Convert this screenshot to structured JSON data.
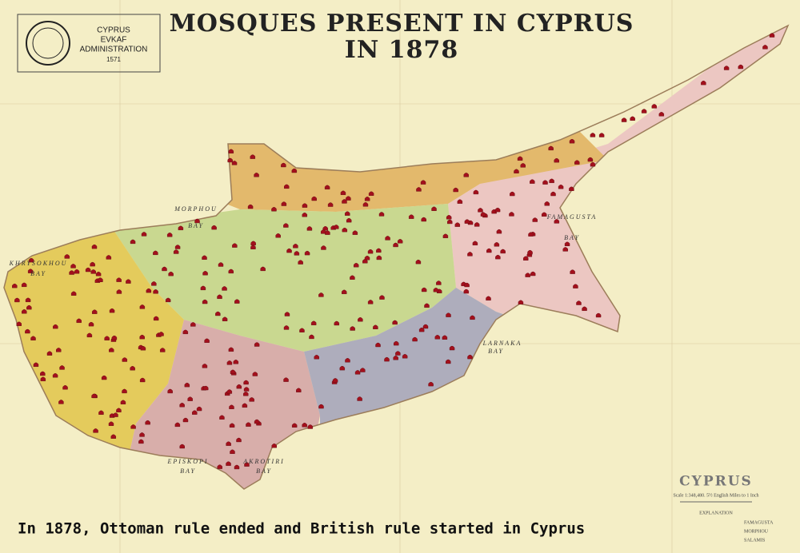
{
  "header": {
    "logo": [
      "CYPRUS",
      "EVKAF",
      "ADMINISTRATION",
      "1571"
    ],
    "title": [
      "MOSQUES PRESENT IN CYPRUS",
      "IN 1878"
    ]
  },
  "caption": "In 1878, Ottoman rule ended and British rule started in Cyprus",
  "map_labels": [
    "MORPHOU",
    "BAY",
    "KHRYSOKHOU",
    "BAY",
    "FAMAGUSTA",
    "BAY",
    "LARNAKA",
    "BAY",
    "EPISKOPI",
    "BAY",
    "AKROTIRI",
    "BAY"
  ],
  "legend": {
    "title": "CYPRUS",
    "scale": "Scale 1:348,480. 5½ English Miles to 1 Inch",
    "heading": "EXPLANATION",
    "entries": [
      "FAMAGUSTA",
      "MORPHOU",
      "SALAMIS"
    ]
  }
}
